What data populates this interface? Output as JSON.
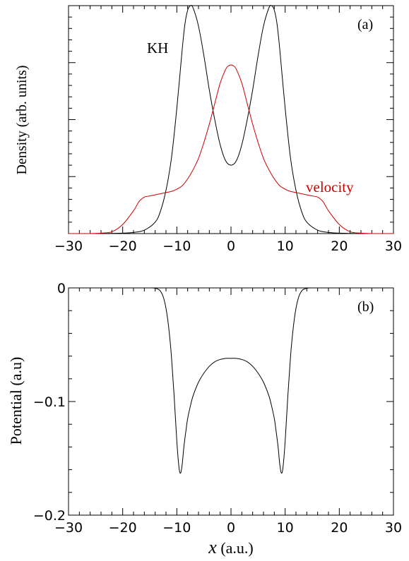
{
  "chart_data": [
    {
      "panel": "a",
      "type": "line",
      "panel_label": "(a)",
      "ylabel": "Density  (arb. units)",
      "xlim": [
        -30,
        30
      ],
      "ylim": [
        0,
        1.0
      ],
      "x_ticks": [
        -30,
        -20,
        -10,
        0,
        10,
        20,
        30
      ],
      "x_tick_labels": [
        "−30",
        "−20",
        "−10",
        "0",
        "10",
        "20",
        "30"
      ],
      "y_tick_labels_shown": false,
      "grid": false,
      "series": [
        {
          "name": "KH",
          "color": "#000000",
          "x": [
            -30,
            -24,
            -20,
            -18,
            -16,
            -14,
            -13,
            -12,
            -11,
            -10,
            -9,
            -8.5,
            -8,
            -7.5,
            -7,
            -6,
            -5,
            -4,
            -3,
            -2,
            -1,
            0,
            1,
            2,
            3,
            4,
            5,
            6,
            7,
            7.5,
            8,
            8.5,
            9,
            10,
            11,
            12,
            13,
            14,
            16,
            18,
            20,
            24,
            30
          ],
          "y": [
            0,
            0,
            0.002,
            0.005,
            0.015,
            0.05,
            0.1,
            0.19,
            0.33,
            0.55,
            0.81,
            0.92,
            0.98,
            1.0,
            0.99,
            0.91,
            0.78,
            0.63,
            0.5,
            0.39,
            0.32,
            0.3,
            0.32,
            0.39,
            0.5,
            0.63,
            0.78,
            0.91,
            0.99,
            1.0,
            0.98,
            0.92,
            0.81,
            0.55,
            0.33,
            0.19,
            0.1,
            0.05,
            0.015,
            0.005,
            0.002,
            0,
            0
          ]
        },
        {
          "name": "velocity",
          "color": "#cc0000",
          "x": [
            -30,
            -26,
            -24,
            -22,
            -20,
            -18,
            -17,
            -16,
            -15,
            -14,
            -13,
            -12,
            -11,
            -10,
            -9,
            -8,
            -7,
            -6,
            -5,
            -4,
            -3,
            -2,
            -1,
            -0.5,
            0,
            0.5,
            1,
            2,
            3,
            4,
            5,
            6,
            7,
            8,
            9,
            10,
            11,
            12,
            13,
            14,
            15,
            16,
            17,
            18,
            20,
            22,
            24,
            26,
            30
          ],
          "y": [
            0,
            0,
            0.002,
            0.008,
            0.04,
            0.1,
            0.14,
            0.16,
            0.165,
            0.17,
            0.175,
            0.18,
            0.185,
            0.195,
            0.21,
            0.24,
            0.28,
            0.33,
            0.4,
            0.48,
            0.57,
            0.66,
            0.72,
            0.735,
            0.74,
            0.735,
            0.72,
            0.66,
            0.57,
            0.48,
            0.4,
            0.33,
            0.28,
            0.24,
            0.21,
            0.195,
            0.185,
            0.18,
            0.175,
            0.17,
            0.165,
            0.16,
            0.14,
            0.1,
            0.04,
            0.008,
            0.002,
            0,
            0
          ]
        }
      ]
    },
    {
      "panel": "b",
      "type": "line",
      "panel_label": "(b)",
      "ylabel": "Potential (a.u)",
      "xlabel_var": "x",
      "xlabel_unit": " (a.u.)",
      "xlim": [
        -30,
        30
      ],
      "ylim": [
        -0.2,
        0.0
      ],
      "x_ticks": [
        -30,
        -20,
        -10,
        0,
        10,
        20,
        30
      ],
      "x_tick_labels": [
        "−30",
        "−20",
        "−10",
        "0",
        "10",
        "20",
        "30"
      ],
      "y_ticks": [
        0,
        -0.1,
        -0.2
      ],
      "y_tick_labels": [
        "0",
        "−0.1",
        "−0.2"
      ],
      "grid": false,
      "series": [
        {
          "color": "#000000",
          "x": [
            -30,
            -16,
            -14.5,
            -13.5,
            -13,
            -12.5,
            -12,
            -11.5,
            -11,
            -10.5,
            -10,
            -9.6,
            -9.3,
            -9,
            -8.7,
            -8.3,
            -8,
            -7.5,
            -7,
            -6,
            -5,
            -4,
            -3,
            -2,
            -1,
            0,
            1,
            2,
            3,
            4,
            5,
            6,
            7,
            7.5,
            8,
            8.3,
            8.7,
            9,
            9.3,
            9.6,
            10,
            10.5,
            11,
            11.5,
            12,
            12.5,
            13,
            13.5,
            14.5,
            16,
            30
          ],
          "y": [
            0.0,
            0.0,
            0.0,
            -0.001,
            -0.003,
            -0.008,
            -0.018,
            -0.035,
            -0.06,
            -0.095,
            -0.135,
            -0.158,
            -0.163,
            -0.155,
            -0.14,
            -0.125,
            -0.115,
            -0.104,
            -0.095,
            -0.083,
            -0.075,
            -0.069,
            -0.065,
            -0.063,
            -0.062,
            -0.062,
            -0.062,
            -0.063,
            -0.065,
            -0.069,
            -0.075,
            -0.083,
            -0.095,
            -0.104,
            -0.115,
            -0.125,
            -0.14,
            -0.155,
            -0.163,
            -0.158,
            -0.135,
            -0.095,
            -0.06,
            -0.035,
            -0.018,
            -0.008,
            -0.003,
            -0.001,
            0.0,
            0.0,
            0.0
          ]
        }
      ]
    }
  ]
}
